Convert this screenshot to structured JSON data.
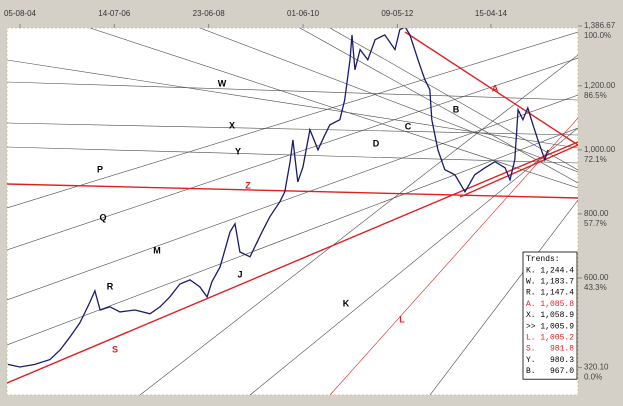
{
  "chart_data": {
    "type": "line",
    "x": [
      -3.0,
      0,
      3.7,
      7.4,
      9.9,
      12.3,
      14.8,
      17.3,
      18.5,
      19.8,
      22.2,
      24.7,
      28.4,
      32.1,
      34.6,
      37.0,
      39.5,
      42.0,
      44.4,
      46.2,
      47.4,
      49.4,
      51.9,
      53.1,
      54.3,
      56.8,
      59.8,
      61.7,
      64.2,
      65.4,
      66.7,
      67.4,
      68.6,
      69.9,
      71.6,
      73.6,
      75.3,
      76.5,
      79.0,
      80.2,
      81.5,
      82.0,
      82.7,
      84.0,
      85.9,
      87.7,
      90.1,
      92.6,
      93.8,
      95.1,
      96.3,
      98.3,
      100.0,
      101.2,
      101.7,
      103.2,
      104.9,
      107.4,
      109.9,
      112.3,
      114.8,
      117.3,
      119.8,
      121.0,
      122.2,
      123.0,
      124.2,
      125.4,
      126.7,
      127.9,
      129.6,
      130.4
    ],
    "values": [
      330,
      322,
      330,
      345,
      375,
      415,
      460,
      525,
      560,
      500,
      510,
      494,
      500,
      488,
      510,
      541,
      581,
      594,
      572,
      541,
      588,
      634,
      744,
      769,
      681,
      666,
      744,
      791,
      838,
      869,
      963,
      1031,
      900,
      947,
      1063,
      1000,
      1047,
      1078,
      1094,
      1156,
      1281,
      1359,
      1250,
      1313,
      1281,
      1344,
      1359,
      1313,
      1375,
      1384,
      1359,
      1281,
      1219,
      1188,
      1094,
      1000,
      938,
      922,
      869,
      922,
      944,
      963,
      944,
      906,
      969,
      1125,
      1094,
      1131,
      1078,
      1031,
      969,
      1000
    ],
    "color": "#1a1a6e",
    "xlim": [
      -3.2,
      137.8
    ],
    "xticks": [
      {
        "value": 0,
        "label": "05-08-04"
      },
      {
        "value": 23.3,
        "label": "14-07-06"
      },
      {
        "value": 46.6,
        "label": "23-06-08"
      },
      {
        "value": 69.9,
        "label": "01-06-10"
      },
      {
        "value": 93.2,
        "label": "09-05-12"
      },
      {
        "value": 116.3,
        "label": "15-04-14"
      }
    ],
    "ylim": [
      320.1,
      1386.67
    ],
    "yticks": [
      {
        "value": 1386.67,
        "label": "1,386.67"
      },
      {
        "value": 1200,
        "label": "1,200.00"
      },
      {
        "value": 1000,
        "label": "1,000.00"
      },
      {
        "value": 800,
        "label": "800.00"
      },
      {
        "value": 600,
        "label": "600.00"
      },
      {
        "value": 320.1,
        "label": "320.10"
      }
    ],
    "percent_labels": [
      "100.0%",
      "86.5%",
      "72.1%",
      "57.7%",
      "43.3%",
      "0.0%"
    ],
    "annotations": [
      {
        "text": "W",
        "color": "#000"
      },
      {
        "text": "X",
        "color": "#000"
      },
      {
        "text": "Y",
        "color": "#000"
      },
      {
        "text": "P",
        "color": "#000"
      },
      {
        "text": "Q",
        "color": "#000"
      },
      {
        "text": "M",
        "color": "#000"
      },
      {
        "text": "R",
        "color": "#000"
      },
      {
        "text": "S",
        "color": "#e02020"
      },
      {
        "text": "Z",
        "color": "#e02020"
      },
      {
        "text": "J",
        "color": "#000"
      },
      {
        "text": "D",
        "color": "#000"
      },
      {
        "text": "C",
        "color": "#000"
      },
      {
        "text": "B",
        "color": "#000"
      },
      {
        "text": "A",
        "color": "#e02020"
      },
      {
        "text": "K",
        "color": "#000"
      },
      {
        "text": "L",
        "color": "#e02020"
      }
    ],
    "trends_title": "Trends:",
    "trends": [
      {
        "name": "K.",
        "value": "1,244.4",
        "color": "#000"
      },
      {
        "name": "W.",
        "value": "1,183.7",
        "color": "#000"
      },
      {
        "name": "R.",
        "value": "1,147.4",
        "color": "#000"
      },
      {
        "name": "A.",
        "value": "1,085.8",
        "color": "#e02020"
      },
      {
        "name": "X.",
        "value": "1,058.9",
        "color": "#000"
      },
      {
        "name": ">>",
        "value": "1,005.9",
        "color": "#000"
      },
      {
        "name": "L.",
        "value": "1,005.2",
        "color": "#e02020"
      },
      {
        "name": "S.",
        "value": "981.8",
        "color": "#e02020"
      },
      {
        "name": "Y.",
        "value": "980.3",
        "color": "#000"
      },
      {
        "name": "B.",
        "value": "967.0",
        "color": "#000"
      }
    ]
  }
}
